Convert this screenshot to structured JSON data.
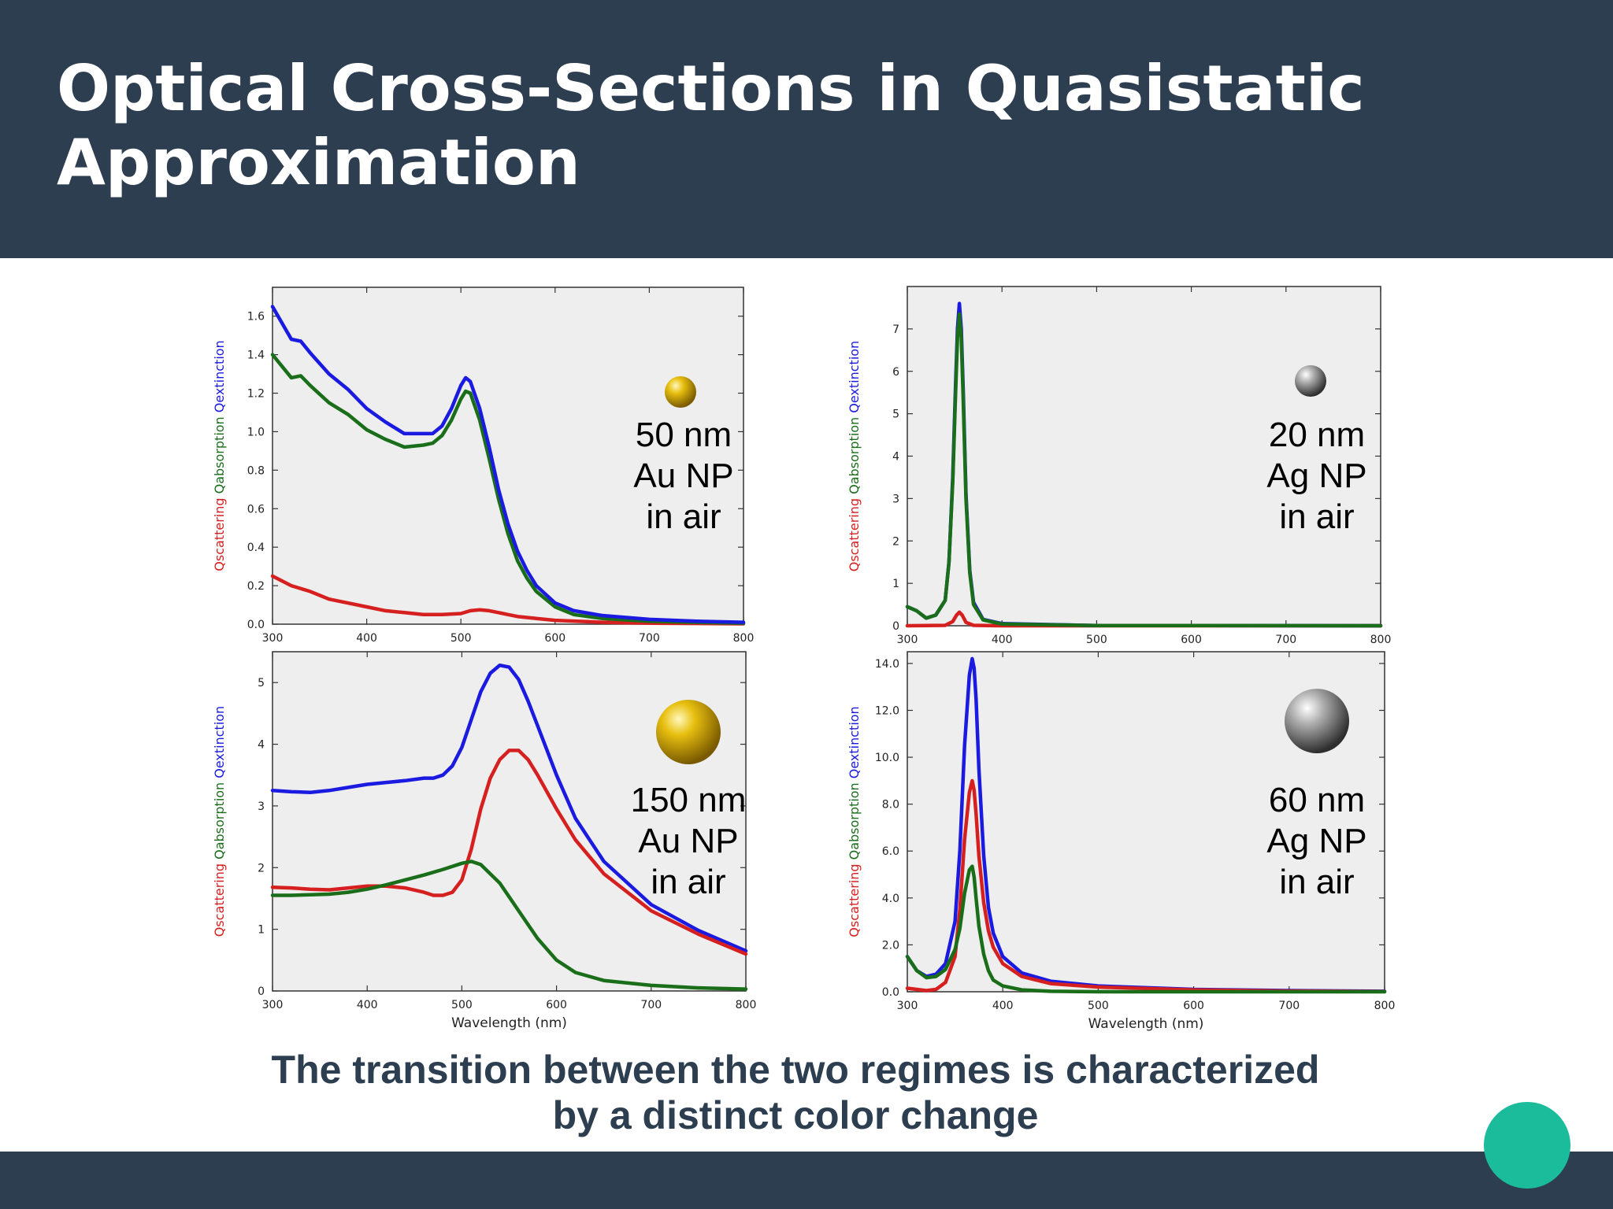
{
  "slide": {
    "title": "Optical Cross-Sections in Quasistatic Approximation",
    "caption_line1": "The transition between the two regimes is characterized",
    "caption_line2": "by a distinct color change"
  },
  "colors": {
    "header": "#2c3e50",
    "accent_dot": "#1abc9c",
    "scattering": "#d62020",
    "absorption": "#1a6e1a",
    "extinction": "#1a1ae0",
    "plot_bg": "#eeeeee",
    "gold": "#e8c010",
    "silver": "#8a8a8a"
  },
  "chart_data": [
    {
      "type": "line",
      "xlabel": "",
      "ylabel": [
        "Qscattering",
        "Qabsorption",
        "Qextinction"
      ],
      "xlim": [
        300,
        800
      ],
      "ylim": [
        0,
        1.75
      ],
      "xticks": [
        300,
        400,
        500,
        600,
        700,
        800
      ],
      "xtick_labels": [
        "300",
        "400",
        "500",
        "600",
        "700",
        "800"
      ],
      "yticks": [
        0,
        0.2,
        0.4,
        0.6,
        0.8,
        1.0,
        1.2,
        1.4,
        1.6
      ],
      "ytick_labels": [
        "0.0",
        "0.2",
        "0.4",
        "0.6",
        "0.8",
        "1.0",
        "1.2",
        "1.4",
        "1.6"
      ],
      "annotation": [
        "50 nm",
        "Au NP",
        "in air"
      ],
      "particle": "gold",
      "series": [
        {
          "color": "#d62020",
          "x": [
            300,
            320,
            340,
            360,
            380,
            400,
            420,
            440,
            460,
            480,
            500,
            510,
            520,
            530,
            540,
            550,
            560,
            580,
            600,
            650,
            700,
            800
          ],
          "y": [
            0.25,
            0.2,
            0.17,
            0.13,
            0.11,
            0.09,
            0.07,
            0.06,
            0.05,
            0.05,
            0.055,
            0.07,
            0.075,
            0.07,
            0.06,
            0.05,
            0.04,
            0.03,
            0.02,
            0.01,
            0.005,
            0.002
          ]
        },
        {
          "color": "#1a6e1a",
          "x": [
            300,
            320,
            330,
            340,
            360,
            380,
            400,
            420,
            440,
            460,
            470,
            480,
            490,
            500,
            505,
            510,
            520,
            530,
            540,
            550,
            560,
            570,
            580,
            600,
            620,
            650,
            700,
            750,
            800
          ],
          "y": [
            1.4,
            1.28,
            1.29,
            1.24,
            1.15,
            1.09,
            1.01,
            0.96,
            0.92,
            0.93,
            0.94,
            0.98,
            1.06,
            1.17,
            1.21,
            1.2,
            1.06,
            0.86,
            0.65,
            0.47,
            0.33,
            0.24,
            0.17,
            0.09,
            0.05,
            0.03,
            0.015,
            0.01,
            0.005
          ]
        },
        {
          "color": "#1a1ae0",
          "x": [
            300,
            320,
            330,
            340,
            360,
            380,
            400,
            420,
            440,
            460,
            470,
            480,
            490,
            500,
            505,
            510,
            520,
            530,
            540,
            550,
            560,
            570,
            580,
            600,
            620,
            650,
            700,
            750,
            800
          ],
          "y": [
            1.65,
            1.48,
            1.47,
            1.41,
            1.3,
            1.22,
            1.12,
            1.05,
            0.99,
            0.99,
            0.99,
            1.03,
            1.12,
            1.24,
            1.28,
            1.26,
            1.12,
            0.92,
            0.7,
            0.52,
            0.38,
            0.28,
            0.2,
            0.11,
            0.07,
            0.045,
            0.025,
            0.015,
            0.01
          ]
        }
      ]
    },
    {
      "type": "line",
      "xlabel": "",
      "ylabel": [
        "Qscattering",
        "Qabsorption",
        "Qextinction"
      ],
      "xlim": [
        300,
        800
      ],
      "ylim": [
        0,
        8
      ],
      "xticks": [
        300,
        400,
        500,
        600,
        700,
        800
      ],
      "xtick_labels": [
        "300",
        "400",
        "500",
        "600",
        "700",
        "800"
      ],
      "yticks": [
        0,
        1,
        2,
        3,
        4,
        5,
        6,
        7
      ],
      "ytick_labels": [
        "0",
        "1",
        "2",
        "3",
        "4",
        "5",
        "6",
        "7"
      ],
      "annotation": [
        "20 nm",
        "Ag NP",
        "in air"
      ],
      "particle": "silver",
      "series": [
        {
          "color": "#d62020",
          "x": [
            300,
            340,
            348,
            352,
            355,
            358,
            362,
            370,
            400,
            800
          ],
          "y": [
            0.0,
            0.01,
            0.1,
            0.25,
            0.32,
            0.25,
            0.08,
            0.01,
            0.0,
            0.0
          ]
        },
        {
          "color": "#1a1ae0",
          "x": [
            300,
            310,
            320,
            330,
            340,
            344,
            348,
            351,
            353,
            355,
            357,
            359,
            362,
            366,
            370,
            380,
            400,
            500,
            800
          ],
          "y": [
            0.45,
            0.35,
            0.18,
            0.25,
            0.6,
            1.5,
            3.5,
            5.7,
            7.0,
            7.6,
            7.0,
            5.6,
            3.1,
            1.3,
            0.55,
            0.15,
            0.05,
            0.005,
            0.0
          ]
        },
        {
          "color": "#1a6e1a",
          "x": [
            300,
            310,
            320,
            330,
            340,
            344,
            348,
            351,
            353,
            355,
            357,
            359,
            362,
            366,
            370,
            380,
            400,
            500,
            800
          ],
          "y": [
            0.45,
            0.35,
            0.18,
            0.25,
            0.6,
            1.5,
            3.4,
            5.5,
            6.8,
            7.35,
            6.8,
            5.4,
            3.0,
            1.25,
            0.5,
            0.14,
            0.04,
            0.005,
            0.0
          ]
        }
      ]
    },
    {
      "type": "line",
      "xlabel": "Wavelength (nm)",
      "ylabel": [
        "Qscattering",
        "Qabsorption",
        "Qextinction"
      ],
      "xlim": [
        300,
        800
      ],
      "ylim": [
        0,
        5.5
      ],
      "xticks": [
        300,
        400,
        500,
        600,
        700,
        800
      ],
      "xtick_labels": [
        "300",
        "400",
        "500",
        "600",
        "700",
        "800"
      ],
      "yticks": [
        0,
        1,
        2,
        3,
        4,
        5
      ],
      "ytick_labels": [
        "0",
        "1",
        "2",
        "3",
        "4",
        "5"
      ],
      "annotation": [
        "150 nm",
        "Au NP",
        "in air"
      ],
      "particle": "gold",
      "series": [
        {
          "color": "#1a1ae0",
          "x": [
            300,
            320,
            340,
            360,
            380,
            400,
            420,
            440,
            460,
            470,
            480,
            490,
            500,
            510,
            520,
            530,
            540,
            550,
            560,
            570,
            580,
            600,
            620,
            650,
            700,
            750,
            800
          ],
          "y": [
            3.25,
            3.23,
            3.22,
            3.25,
            3.3,
            3.35,
            3.38,
            3.41,
            3.45,
            3.45,
            3.5,
            3.65,
            3.95,
            4.4,
            4.85,
            5.15,
            5.28,
            5.25,
            5.05,
            4.7,
            4.3,
            3.5,
            2.8,
            2.1,
            1.4,
            0.98,
            0.65
          ]
        },
        {
          "color": "#d62020",
          "x": [
            300,
            320,
            340,
            360,
            380,
            400,
            420,
            440,
            460,
            470,
            480,
            490,
            500,
            510,
            520,
            530,
            540,
            550,
            560,
            570,
            580,
            600,
            620,
            650,
            700,
            750,
            800
          ],
          "y": [
            1.68,
            1.67,
            1.65,
            1.64,
            1.67,
            1.7,
            1.7,
            1.67,
            1.6,
            1.55,
            1.55,
            1.6,
            1.8,
            2.3,
            2.95,
            3.45,
            3.75,
            3.9,
            3.9,
            3.75,
            3.5,
            2.95,
            2.45,
            1.9,
            1.3,
            0.92,
            0.6
          ]
        },
        {
          "color": "#1a6e1a",
          "x": [
            300,
            320,
            340,
            360,
            380,
            400,
            420,
            440,
            460,
            480,
            500,
            510,
            520,
            540,
            560,
            580,
            600,
            620,
            650,
            700,
            750,
            800
          ],
          "y": [
            1.55,
            1.55,
            1.56,
            1.57,
            1.6,
            1.65,
            1.72,
            1.8,
            1.88,
            1.97,
            2.07,
            2.1,
            2.05,
            1.75,
            1.3,
            0.85,
            0.5,
            0.3,
            0.17,
            0.09,
            0.05,
            0.03
          ]
        }
      ]
    },
    {
      "type": "line",
      "xlabel": "Wavelength (nm)",
      "ylabel": [
        "Qscattering",
        "Qabsorption",
        "Qextinction"
      ],
      "xlim": [
        300,
        800
      ],
      "ylim": [
        0,
        14.5
      ],
      "xticks": [
        300,
        400,
        500,
        600,
        700,
        800
      ],
      "xtick_labels": [
        "300",
        "400",
        "500",
        "600",
        "700",
        "800"
      ],
      "yticks": [
        0,
        2,
        4,
        6,
        8,
        10,
        12,
        14
      ],
      "ytick_labels": [
        "0.0",
        "2.0",
        "4.0",
        "6.0",
        "8.0",
        "10.0",
        "12.0",
        "14.0"
      ],
      "annotation": [
        "60 nm",
        "Ag NP",
        "in air"
      ],
      "particle": "silver",
      "series": [
        {
          "color": "#1a1ae0",
          "x": [
            300,
            310,
            320,
            330,
            340,
            350,
            355,
            360,
            365,
            368,
            370,
            372,
            375,
            380,
            385,
            390,
            400,
            420,
            450,
            500,
            600,
            700,
            800
          ],
          "y": [
            1.5,
            0.9,
            0.65,
            0.75,
            1.2,
            3.0,
            6.0,
            10.5,
            13.5,
            14.2,
            13.8,
            12.5,
            9.5,
            5.8,
            3.6,
            2.5,
            1.5,
            0.8,
            0.45,
            0.25,
            0.1,
            0.05,
            0.02
          ]
        },
        {
          "color": "#d62020",
          "x": [
            300,
            310,
            320,
            330,
            340,
            350,
            355,
            360,
            365,
            368,
            370,
            372,
            375,
            380,
            385,
            390,
            400,
            420,
            450,
            500,
            600,
            700,
            800
          ],
          "y": [
            0.15,
            0.1,
            0.05,
            0.1,
            0.4,
            1.5,
            3.5,
            6.5,
            8.5,
            9.0,
            8.6,
            7.6,
            5.8,
            3.8,
            2.6,
            1.9,
            1.2,
            0.65,
            0.35,
            0.2,
            0.08,
            0.03,
            0.01
          ]
        },
        {
          "color": "#1a6e1a",
          "x": [
            300,
            310,
            320,
            330,
            340,
            350,
            355,
            360,
            365,
            368,
            370,
            372,
            375,
            380,
            385,
            390,
            400,
            420,
            450,
            500,
            800
          ],
          "y": [
            1.5,
            0.9,
            0.6,
            0.65,
            0.95,
            1.8,
            2.7,
            4.2,
            5.2,
            5.35,
            4.9,
            4.0,
            2.8,
            1.6,
            0.9,
            0.5,
            0.25,
            0.08,
            0.02,
            0.0,
            0.0
          ]
        }
      ]
    }
  ]
}
